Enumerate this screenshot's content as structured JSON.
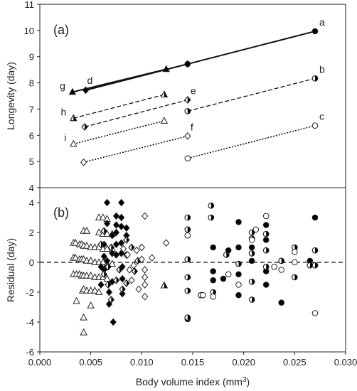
{
  "figure": {
    "xlabel_main": "Body volume index (mm",
    "xlabel_sup": "3",
    "xlabel_end": ")"
  },
  "chart_data": [
    {
      "panel_label": "(a)",
      "type": "line",
      "ylabel": "Longevity (day)",
      "xlim": [
        0.0,
        0.03
      ],
      "ylim": [
        4,
        11
      ],
      "yticks": [
        4,
        5,
        6,
        7,
        8,
        9,
        10,
        11
      ],
      "series": [
        {
          "name": "g",
          "line": "solid",
          "marker": "triangle",
          "fill": "filled",
          "points": [
            [
              0.0032,
              7.65
            ],
            [
              0.0124,
              8.52
            ]
          ]
        },
        {
          "name": "d",
          "line": "solid",
          "marker": "diamond",
          "fill": "filled",
          "points": [
            [
              0.0045,
              7.72
            ],
            [
              0.0145,
              8.72
            ]
          ]
        },
        {
          "name": "a",
          "line": "solid",
          "marker": "circle",
          "fill": "filled",
          "points": [
            [
              0.0145,
              8.72
            ],
            [
              0.027,
              9.97
            ]
          ]
        },
        {
          "name": "h",
          "line": "dashed",
          "marker": "triangle",
          "fill": "half",
          "points": [
            [
              0.0033,
              6.65
            ],
            [
              0.0122,
              7.55
            ]
          ]
        },
        {
          "name": "e",
          "line": "dashed",
          "marker": "diamond",
          "fill": "half",
          "points": [
            [
              0.0044,
              6.32
            ],
            [
              0.0145,
              7.35
            ]
          ]
        },
        {
          "name": "b",
          "line": "dashed",
          "marker": "circle",
          "fill": "half",
          "points": [
            [
              0.0145,
              6.92
            ],
            [
              0.027,
              8.17
            ]
          ]
        },
        {
          "name": "i",
          "line": "dotted",
          "marker": "triangle",
          "fill": "open",
          "points": [
            [
              0.0033,
              5.67
            ],
            [
              0.0122,
              6.55
            ]
          ]
        },
        {
          "name": "f",
          "line": "dotted",
          "marker": "diamond",
          "fill": "open",
          "points": [
            [
              0.0043,
              4.97
            ],
            [
              0.0145,
              5.97
            ]
          ]
        },
        {
          "name": "c",
          "line": "dotted",
          "marker": "circle",
          "fill": "open",
          "points": [
            [
              0.0145,
              5.12
            ],
            [
              0.027,
              6.37
            ]
          ]
        }
      ]
    },
    {
      "panel_label": "(b)",
      "type": "scatter",
      "ylabel": "Residual (day)",
      "xlim": [
        0.0,
        0.03
      ],
      "ylim": [
        -6,
        5
      ],
      "yticks": [
        -6,
        -4,
        -2,
        0,
        2,
        4
      ],
      "xticks": [
        "0.000",
        "0.005",
        "0.010",
        "0.015",
        "0.020",
        "0.025",
        "0.030"
      ],
      "reference_line": {
        "y": 0,
        "style": "dashed"
      },
      "series": [
        {
          "marker": "triangle",
          "fill": "open",
          "points": [
            [
              0.0033,
              1.3
            ],
            [
              0.0033,
              0.3
            ],
            [
              0.0033,
              -0.8
            ],
            [
              0.0035,
              1.3
            ],
            [
              0.0035,
              0.3
            ],
            [
              0.0036,
              -0.8
            ],
            [
              0.0036,
              -2.6
            ],
            [
              0.0039,
              1.2
            ],
            [
              0.0039,
              0.2
            ],
            [
              0.0039,
              -0.8
            ],
            [
              0.0041,
              1.2
            ],
            [
              0.0041,
              0.2
            ],
            [
              0.0041,
              -0.9
            ],
            [
              0.0042,
              -1.9
            ],
            [
              0.0043,
              2.1
            ],
            [
              0.0043,
              1.1
            ],
            [
              0.0043,
              0.2
            ],
            [
              0.0043,
              -0.9
            ],
            [
              0.0043,
              -1.8
            ],
            [
              0.0043,
              -3.7
            ],
            [
              0.0043,
              -4.7
            ],
            [
              0.0046,
              2.1
            ],
            [
              0.0046,
              1.1
            ],
            [
              0.0046,
              0.1
            ],
            [
              0.0046,
              -0.9
            ],
            [
              0.0046,
              -1.9
            ],
            [
              0.005,
              1.0
            ],
            [
              0.005,
              0.1
            ],
            [
              0.005,
              -0.9
            ],
            [
              0.005,
              -1.9
            ],
            [
              0.005,
              -2.9
            ],
            [
              0.0054,
              1.0
            ],
            [
              0.0054,
              0.0
            ],
            [
              0.0054,
              -1.0
            ],
            [
              0.0054,
              -1.9
            ],
            [
              0.0058,
              3.0
            ],
            [
              0.0058,
              2.0
            ],
            [
              0.0058,
              1.0
            ],
            [
              0.0058,
              0.0
            ],
            [
              0.0058,
              -1.0
            ],
            [
              0.0058,
              -2.0
            ],
            [
              0.0062,
              3.0
            ],
            [
              0.0062,
              1.9
            ],
            [
              0.0062,
              0.9
            ],
            [
              0.0062,
              0.0
            ],
            [
              0.0062,
              -1.0
            ],
            [
              0.0066,
              2.9
            ],
            [
              0.0066,
              1.9
            ],
            [
              0.0066,
              0.9
            ],
            [
              0.0066,
              -0.1
            ],
            [
              0.0066,
              -1.1
            ],
            [
              0.0071,
              1.9
            ],
            [
              0.0071,
              0.9
            ],
            [
              0.0071,
              -0.1
            ]
          ]
        },
        {
          "marker": "triangle",
          "fill": "half",
          "points": [
            [
              0.0122,
              -1.55
            ]
          ]
        },
        {
          "marker": "diamond",
          "fill": "filled",
          "points": [
            [
              0.006,
              -0.3
            ],
            [
              0.006,
              -1.5
            ],
            [
              0.0063,
              1.2
            ],
            [
              0.0063,
              0.4
            ],
            [
              0.0063,
              -0.5
            ],
            [
              0.0066,
              4.0
            ],
            [
              0.0066,
              2.6
            ],
            [
              0.0066,
              0.1
            ],
            [
              0.0066,
              -0.3
            ],
            [
              0.0068,
              -2.0
            ],
            [
              0.0068,
              -2.8
            ],
            [
              0.0071,
              1.8
            ],
            [
              0.0071,
              0.6
            ],
            [
              0.0071,
              -1.3
            ],
            [
              0.0072,
              -4.0
            ],
            [
              0.0075,
              3.1
            ],
            [
              0.0075,
              2.5
            ],
            [
              0.0075,
              2.0
            ],
            [
              0.0075,
              1.2
            ],
            [
              0.0075,
              0.5
            ],
            [
              0.008,
              4.0
            ],
            [
              0.008,
              3.0
            ],
            [
              0.008,
              2.4
            ],
            [
              0.008,
              1.3
            ],
            [
              0.008,
              0.6
            ],
            [
              0.0081,
              -0.3
            ],
            [
              0.0081,
              -1.1
            ],
            [
              0.0081,
              -2.1
            ],
            [
              0.0085,
              2.3
            ],
            [
              0.0085,
              1.8
            ]
          ]
        },
        {
          "marker": "diamond",
          "fill": "half",
          "points": [
            [
              0.006,
              1.2
            ],
            [
              0.0063,
              2.1
            ],
            [
              0.0063,
              -0.8
            ],
            [
              0.0067,
              -1.5
            ],
            [
              0.0067,
              -0.3
            ],
            [
              0.007,
              1.0
            ],
            [
              0.007,
              -2.5
            ],
            [
              0.0075,
              -1.2
            ],
            [
              0.0078,
              -0.5
            ],
            [
              0.0081,
              -1.8
            ],
            [
              0.0085,
              1.5
            ],
            [
              0.0085,
              0.5
            ],
            [
              0.0085,
              -1.4
            ],
            [
              0.009,
              1.0
            ],
            [
              0.0093,
              -0.6
            ],
            [
              0.0096,
              0.1
            ]
          ]
        },
        {
          "marker": "diamond",
          "fill": "open",
          "points": [
            [
              0.0082,
              0.9
            ],
            [
              0.0086,
              0.5
            ],
            [
              0.0088,
              -0.5
            ],
            [
              0.009,
              -1.2
            ],
            [
              0.0092,
              -0.2
            ],
            [
              0.0095,
              0.8
            ],
            [
              0.0097,
              -1.8
            ],
            [
              0.01,
              1.0
            ],
            [
              0.01,
              0.2
            ],
            [
              0.0103,
              3.1
            ],
            [
              0.0103,
              -0.5
            ],
            [
              0.0103,
              -1.0
            ],
            [
              0.0103,
              -1.5
            ],
            [
              0.0103,
              -2.3
            ],
            [
              0.011,
              0.3
            ],
            [
              0.0124,
              1.3
            ]
          ]
        },
        {
          "marker": "circle",
          "fill": "filled",
          "points": [
            [
              0.0145,
              -3.8
            ],
            [
              0.017,
              -0.6
            ],
            [
              0.017,
              -1.2
            ],
            [
              0.017,
              1.0
            ],
            [
              0.018,
              -1.1
            ],
            [
              0.0185,
              0.8
            ],
            [
              0.0195,
              2.7
            ],
            [
              0.0195,
              1.0
            ],
            [
              0.0195,
              -0.8
            ],
            [
              0.0195,
              -2.2
            ],
            [
              0.0208,
              1.0
            ],
            [
              0.0208,
              0.1
            ],
            [
              0.0222,
              2.5
            ],
            [
              0.0222,
              1.5
            ],
            [
              0.0222,
              -0.6
            ],
            [
              0.0222,
              -1.5
            ],
            [
              0.0237,
              -2.7
            ],
            [
              0.0265,
              0.1
            ],
            [
              0.027,
              3.0
            ]
          ]
        },
        {
          "marker": "circle",
          "fill": "half",
          "points": [
            [
              0.0145,
              3.0
            ],
            [
              0.0145,
              2.2
            ],
            [
              0.0145,
              0.2
            ],
            [
              0.0145,
              -1.0
            ],
            [
              0.0145,
              -1.9
            ],
            [
              0.0145,
              -3.7
            ],
            [
              0.0158,
              -2.2
            ],
            [
              0.0168,
              3.8
            ],
            [
              0.0168,
              3.0
            ],
            [
              0.017,
              -2.0
            ],
            [
              0.0183,
              0.5
            ],
            [
              0.0195,
              -0.1
            ],
            [
              0.0208,
              2.0
            ],
            [
              0.0208,
              1.6
            ],
            [
              0.0208,
              0.6
            ],
            [
              0.0208,
              -1.3
            ],
            [
              0.0208,
              -2.5
            ],
            [
              0.0222,
              1.9
            ],
            [
              0.0222,
              0.8
            ],
            [
              0.0222,
              -0.3
            ],
            [
              0.0237,
              0.1
            ],
            [
              0.025,
              1.0
            ],
            [
              0.025,
              -1.0
            ],
            [
              0.0265,
              -0.2
            ],
            [
              0.027,
              0.8
            ],
            [
              0.027,
              -0.2
            ]
          ]
        },
        {
          "marker": "circle",
          "fill": "open",
          "points": [
            [
              0.0145,
              1.8
            ],
            [
              0.016,
              -2.2
            ],
            [
              0.017,
              -2.3
            ],
            [
              0.0185,
              -0.8
            ],
            [
              0.0195,
              -1.5
            ],
            [
              0.0208,
              1.5
            ],
            [
              0.0212,
              2.2
            ],
            [
              0.0222,
              3.1
            ],
            [
              0.023,
              -0.3
            ],
            [
              0.0237,
              -0.5
            ],
            [
              0.025,
              0.7
            ],
            [
              0.025,
              0.0
            ],
            [
              0.027,
              -3.4
            ]
          ]
        }
      ]
    }
  ]
}
